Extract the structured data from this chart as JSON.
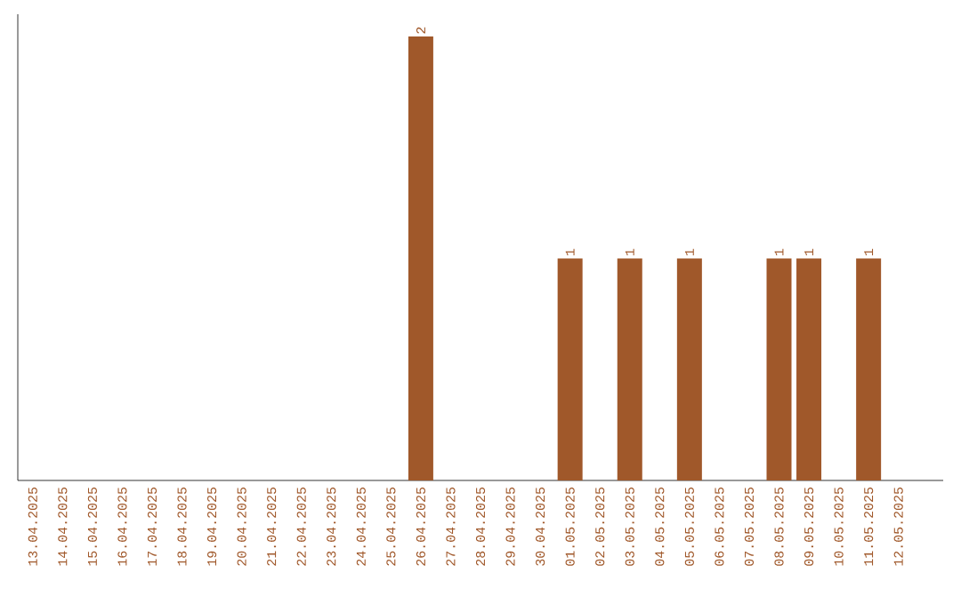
{
  "chart_data": {
    "type": "bar",
    "categories": [
      "13.04.2025",
      "14.04.2025",
      "15.04.2025",
      "16.04.2025",
      "17.04.2025",
      "18.04.2025",
      "19.04.2025",
      "20.04.2025",
      "21.04.2025",
      "22.04.2025",
      "23.04.2025",
      "24.04.2025",
      "25.04.2025",
      "26.04.2025",
      "27.04.2025",
      "28.04.2025",
      "29.04.2025",
      "30.04.2025",
      "01.05.2025",
      "02.05.2025",
      "03.05.2025",
      "04.05.2025",
      "05.05.2025",
      "06.05.2025",
      "07.05.2025",
      "08.05.2025",
      "09.05.2025",
      "10.05.2025",
      "11.05.2025",
      "12.05.2025"
    ],
    "values": [
      null,
      null,
      null,
      null,
      null,
      null,
      null,
      null,
      null,
      null,
      null,
      null,
      null,
      2,
      null,
      null,
      null,
      null,
      1,
      null,
      1,
      null,
      1,
      null,
      null,
      1,
      1,
      null,
      1,
      null
    ],
    "data_labels": true,
    "color": "#a0582a",
    "tick_labels": "x"
  }
}
